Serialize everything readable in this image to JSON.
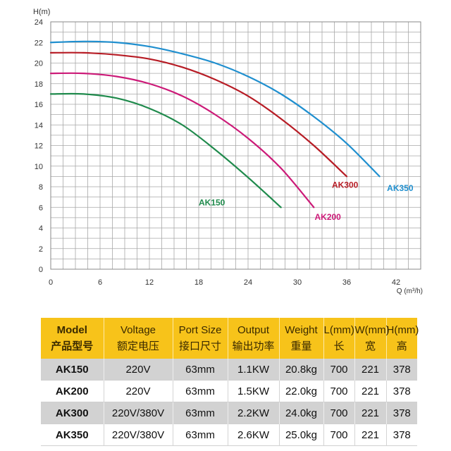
{
  "chart_data": {
    "type": "line",
    "xlabel": "Q (m³/h)",
    "ylabel": "H(m)",
    "xlim": [
      0,
      45
    ],
    "ylim": [
      0,
      24
    ],
    "x_ticks": [
      0,
      6,
      12,
      18,
      24,
      30,
      36,
      42
    ],
    "y_ticks": [
      0,
      2,
      4,
      6,
      8,
      10,
      12,
      14,
      16,
      18,
      20,
      22,
      24
    ],
    "grid": true,
    "series": [
      {
        "name": "AK150",
        "color": "#1f8a4c",
        "x": [
          0,
          4,
          8,
          12,
          16,
          20,
          24,
          28
        ],
        "y": [
          17.0,
          17.0,
          16.6,
          15.6,
          14.0,
          11.6,
          8.9,
          6.0
        ]
      },
      {
        "name": "AK200",
        "color": "#cc1a78",
        "x": [
          0,
          4,
          8,
          12,
          16,
          20,
          24,
          28,
          32
        ],
        "y": [
          19.0,
          19.0,
          18.7,
          18.0,
          16.8,
          15.0,
          12.7,
          9.8,
          6.0
        ]
      },
      {
        "name": "AK300",
        "color": "#b71c25",
        "x": [
          0,
          4,
          8,
          12,
          16,
          20,
          24,
          28,
          32,
          36
        ],
        "y": [
          21.0,
          21.0,
          20.8,
          20.4,
          19.6,
          18.4,
          16.8,
          14.6,
          12.0,
          9.0
        ]
      },
      {
        "name": "AK350",
        "color": "#1f8fcf",
        "x": [
          0,
          4,
          8,
          12,
          16,
          20,
          24,
          28,
          32,
          36,
          40
        ],
        "y": [
          22.0,
          22.1,
          22.0,
          21.6,
          20.9,
          20.0,
          18.7,
          17.0,
          14.8,
          12.2,
          9.0
        ]
      }
    ]
  },
  "table": {
    "headers": [
      {
        "en": "Model",
        "zh": "产品型号"
      },
      {
        "en": "Voltage",
        "zh": "额定电压"
      },
      {
        "en": "Port Size",
        "zh": "接口尺寸"
      },
      {
        "en": "Output",
        "zh": "输出功率"
      },
      {
        "en": "Weight",
        "zh": "重量"
      },
      {
        "en": "L(mm)",
        "zh": "长"
      },
      {
        "en": "W(mm)",
        "zh": "宽"
      },
      {
        "en": "H(mm)",
        "zh": "高"
      }
    ],
    "rows": [
      [
        "AK150",
        "220V",
        "63mm",
        "1.1KW",
        "20.8kg",
        "700",
        "221",
        "378"
      ],
      [
        "AK200",
        "220V",
        "63mm",
        "1.5KW",
        "22.0kg",
        "700",
        "221",
        "378"
      ],
      [
        "AK300",
        "220V/380V",
        "63mm",
        "2.2KW",
        "24.0kg",
        "700",
        "221",
        "378"
      ],
      [
        "AK350",
        "220V/380V",
        "63mm",
        "2.6KW",
        "25.0kg",
        "700",
        "221",
        "378"
      ]
    ]
  }
}
